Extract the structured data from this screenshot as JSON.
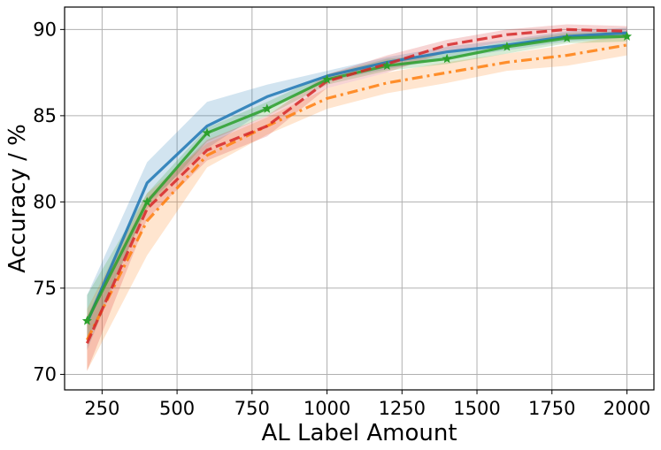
{
  "chart_data": {
    "type": "line",
    "title": "",
    "xlabel": "AL Label Amount",
    "ylabel": "Accuracy / %",
    "xlim": [
      125,
      2090
    ],
    "ylim": [
      69.1,
      91.3
    ],
    "xticks": [
      250,
      500,
      750,
      1000,
      1250,
      1500,
      1750,
      2000
    ],
    "yticks": [
      70,
      75,
      80,
      85,
      90
    ],
    "grid": true,
    "legend": "none",
    "x": [
      200,
      400,
      600,
      800,
      1000,
      1200,
      1400,
      1600,
      1800,
      2000
    ],
    "series": [
      {
        "color": "#1f77b4",
        "line_style": "solid",
        "marker": "none",
        "values": [
          73.0,
          81.1,
          84.4,
          86.1,
          87.3,
          88.1,
          88.7,
          89.1,
          89.6,
          89.8
        ],
        "lower": [
          71.4,
          79.9,
          83.1,
          85.4,
          87.0,
          87.7,
          88.3,
          88.8,
          89.3,
          89.5
        ],
        "upper": [
          74.6,
          82.3,
          85.8,
          86.8,
          87.6,
          88.4,
          89.0,
          89.4,
          89.9,
          90.1
        ]
      },
      {
        "color": "#ff7f0e",
        "line_style": "dashdot",
        "marker": "none",
        "values": [
          72.0,
          78.9,
          82.7,
          84.4,
          86.0,
          86.9,
          87.5,
          88.1,
          88.5,
          89.1
        ],
        "lower": [
          70.2,
          76.9,
          82.0,
          83.9,
          85.4,
          86.3,
          86.9,
          87.6,
          87.9,
          88.5
        ],
        "upper": [
          73.8,
          80.5,
          83.4,
          84.9,
          86.6,
          87.5,
          88.1,
          88.6,
          89.1,
          89.7
        ]
      },
      {
        "color": "#2ca02c",
        "line_style": "solid",
        "marker": "star",
        "values": [
          73.1,
          80.0,
          84.0,
          85.4,
          87.1,
          87.9,
          88.3,
          89.0,
          89.5,
          89.6
        ],
        "lower": [
          72.0,
          79.6,
          83.5,
          85.0,
          86.8,
          87.6,
          88.0,
          88.6,
          89.2,
          89.3
        ],
        "upper": [
          74.6,
          80.5,
          84.3,
          85.8,
          87.4,
          88.3,
          88.6,
          89.3,
          89.8,
          89.9
        ]
      },
      {
        "color": "#d62728",
        "line_style": "dashed",
        "marker": "none",
        "values": [
          71.8,
          79.6,
          83.0,
          84.4,
          87.0,
          88.0,
          89.1,
          89.7,
          90.0,
          89.9
        ],
        "lower": [
          70.2,
          79.0,
          82.4,
          83.8,
          86.6,
          87.5,
          88.7,
          89.3,
          89.6,
          89.6
        ],
        "upper": [
          73.4,
          80.2,
          83.6,
          85.0,
          87.4,
          88.5,
          89.4,
          90.0,
          90.3,
          90.2
        ]
      }
    ]
  }
}
